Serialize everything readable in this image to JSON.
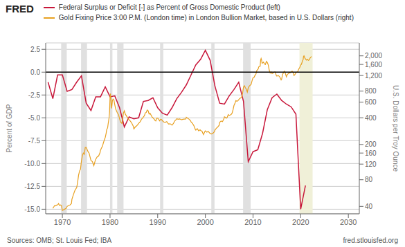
{
  "chart_data": {
    "type": "line",
    "annotations": [
      "FRED",
      "Sources: OMB; St. Louis Fed; IBA",
      "fred.stlouisfed.org"
    ],
    "y_label": "Percent of GDP",
    "y2_label": "U.S. Dollars per Troy Ounce",
    "xlim": [
      1966.5,
      2032.3
    ],
    "xticks": [
      1970,
      1980,
      1990,
      2000,
      2010,
      2020,
      2030
    ],
    "ylim": [
      -15.5,
      3.2
    ],
    "yticks": [
      {
        "value": -15.0,
        "label": "-15.0"
      },
      -12.5,
      {
        "value": -10.0,
        "label": "-10.0"
      },
      -7.5,
      {
        "value": -5.0,
        "label": "-5.0"
      },
      -2.5,
      {
        "value": 0.0,
        "label": "0.0"
      },
      2.5
    ],
    "y2lim": [
      33,
      2800
    ],
    "y2ticks": [
      40,
      80,
      120,
      160,
      200,
      400,
      600,
      800,
      {
        "value": 1200,
        "label": "1,200"
      },
      {
        "value": 1600,
        "label": "1,600"
      },
      {
        "value": 2000,
        "label": "2,000"
      }
    ],
    "log": "y2",
    "grid": "y",
    "zero_line": {
      "value": 0,
      "color": "#000000"
    },
    "recession_bands": {
      "color": "#e0e0e0",
      "ranges": [
        [
          1969.75,
          1970.92
        ],
        [
          1973.92,
          1975.17
        ],
        [
          1980.0,
          1980.5
        ],
        [
          1981.5,
          1982.83
        ],
        [
          1990.5,
          1991.17
        ],
        [
          2001.25,
          2001.92
        ],
        [
          2007.92,
          2009.5
        ],
        [
          2020.0,
          2020.42
        ]
      ]
    },
    "highlight_band": {
      "color": "#f0f0d8",
      "range": [
        2019.75,
        2022.5
      ]
    },
    "series": [
      {
        "name": "Federal Surplus or Deficit [-] as Percent of Gross Domestic Product (left)",
        "color": "#c8173a",
        "x": [
          1967,
          1968,
          1969,
          1970,
          1971,
          1972,
          1973,
          1974,
          1975,
          1976,
          1977,
          1978,
          1979,
          1980,
          1981,
          1982,
          1983,
          1984,
          1985,
          1986,
          1987,
          1988,
          1989,
          1990,
          1991,
          1992,
          1993,
          1994,
          1995,
          1996,
          1997,
          1998,
          1999,
          2000,
          2001,
          2002,
          2003,
          2004,
          2005,
          2006,
          2007,
          2008,
          2009,
          2010,
          2011,
          2012,
          2013,
          2014,
          2015,
          2016,
          2017,
          2018,
          2019,
          2020,
          2021
        ],
        "values": [
          -1.1,
          -2.9,
          -0.3,
          -0.3,
          -2.1,
          -1.9,
          -1.1,
          -0.4,
          -3.4,
          -4.2,
          -2.7,
          -2.7,
          -1.6,
          -2.7,
          -2.6,
          -3.9,
          -6.0,
          -4.9,
          -5.1,
          -5.0,
          -3.2,
          -3.1,
          -2.8,
          -3.9,
          -4.5,
          -4.7,
          -3.9,
          -2.9,
          -2.2,
          -1.4,
          -0.3,
          0.8,
          1.4,
          2.4,
          1.3,
          -1.5,
          -3.4,
          -3.5,
          -2.6,
          -1.9,
          -1.1,
          -3.2,
          -9.8,
          -8.7,
          -8.5,
          -6.7,
          -4.1,
          -2.8,
          -2.4,
          -3.1,
          -3.5,
          -3.8,
          -4.6,
          -15.0,
          -12.4
        ]
      },
      {
        "name": "Gold Fixing Price 3:00 P.M. (London time) in London Bullion Market, based in U.S. Dollars (right)",
        "color": "#e8a020",
        "axis": "y2",
        "x": [
          1968.0,
          1968.2,
          1968.4,
          1968.6,
          1968.8,
          1969.0,
          1969.2,
          1969.4,
          1969.6,
          1969.8,
          1970.0,
          1970.2,
          1970.4,
          1970.6,
          1970.8,
          1971.0,
          1971.3,
          1971.6,
          1971.9,
          1972.0,
          1972.3,
          1972.6,
          1972.9,
          1973.0,
          1973.2,
          1973.4,
          1973.6,
          1973.8,
          1974.0,
          1974.2,
          1974.4,
          1974.6,
          1974.8,
          1975.0,
          1975.2,
          1975.4,
          1975.6,
          1975.8,
          1976.0,
          1976.3,
          1976.6,
          1976.9,
          1977.0,
          1977.3,
          1977.6,
          1977.9,
          1978.0,
          1978.2,
          1978.4,
          1978.6,
          1978.8,
          1979.0,
          1979.1,
          1979.2,
          1979.3,
          1979.4,
          1979.5,
          1979.6,
          1979.7,
          1979.8,
          1979.9,
          1980.0,
          1980.08,
          1980.17,
          1980.25,
          1980.33,
          1980.5,
          1980.67,
          1980.83,
          1981.0,
          1981.2,
          1981.5,
          1981.8,
          1982.0,
          1982.2,
          1982.5,
          1982.8,
          1983.0,
          1983.2,
          1983.5,
          1983.8,
          1984.0,
          1984.3,
          1984.6,
          1984.9,
          1985.0,
          1985.3,
          1985.6,
          1985.9,
          1986.0,
          1986.3,
          1986.6,
          1986.9,
          1987.0,
          1987.2,
          1987.4,
          1987.6,
          1987.8,
          1988.0,
          1988.2,
          1988.4,
          1988.6,
          1988.8,
          1989.0,
          1989.2,
          1989.4,
          1989.6,
          1989.8,
          1990.0,
          1990.2,
          1990.4,
          1990.6,
          1990.8,
          1991.0,
          1991.3,
          1991.6,
          1991.9,
          1992.0,
          1992.3,
          1992.6,
          1992.9,
          1993.0,
          1993.3,
          1993.6,
          1993.9,
          1994.0,
          1994.3,
          1994.6,
          1994.9,
          1995.0,
          1995.3,
          1995.6,
          1995.9,
          1996.0,
          1996.3,
          1996.6,
          1996.9,
          1997.0,
          1997.3,
          1997.6,
          1997.9,
          1998.0,
          1998.3,
          1998.6,
          1998.9,
          1999.0,
          1999.3,
          1999.6,
          1999.9,
          2000.0,
          2000.3,
          2000.6,
          2000.9,
          2001.0,
          2001.3,
          2001.6,
          2001.9,
          2002.0,
          2002.3,
          2002.6,
          2002.9,
          2003.0,
          2003.3,
          2003.6,
          2003.9,
          2004.0,
          2004.2,
          2004.4,
          2004.6,
          2004.8,
          2005.0,
          2005.2,
          2005.4,
          2005.6,
          2005.8,
          2006.0,
          2006.2,
          2006.4,
          2006.6,
          2006.8,
          2007.0,
          2007.2,
          2007.4,
          2007.6,
          2007.8,
          2008.0,
          2008.2,
          2008.4,
          2008.6,
          2008.8,
          2009.0,
          2009.2,
          2009.4,
          2009.6,
          2009.8,
          2010.0,
          2010.2,
          2010.4,
          2010.6,
          2010.8,
          2011.0,
          2011.1,
          2011.2,
          2011.3,
          2011.4,
          2011.5,
          2011.6,
          2011.7,
          2011.8,
          2011.9,
          2012.0,
          2012.2,
          2012.4,
          2012.6,
          2012.8,
          2013.0,
          2013.2,
          2013.4,
          2013.6,
          2013.8,
          2014.0,
          2014.3,
          2014.6,
          2014.9,
          2015.0,
          2015.3,
          2015.6,
          2015.9,
          2016.0,
          2016.2,
          2016.4,
          2016.6,
          2016.8,
          2017.0,
          2017.2,
          2017.4,
          2017.6,
          2017.8,
          2018.0,
          2018.2,
          2018.4,
          2018.6,
          2018.8,
          2019.0,
          2019.2,
          2019.4,
          2019.6,
          2019.8,
          2020.0,
          2020.1,
          2020.2,
          2020.3,
          2020.4,
          2020.5,
          2020.6,
          2020.7,
          2020.8,
          2020.9,
          2021.0,
          2021.2,
          2021.4,
          2021.6,
          2021.8,
          2022.0,
          2022.2,
          2022.25
        ],
        "values": [
          38.0,
          39.5,
          41.0,
          40.5,
          41.5,
          41.5,
          43.0,
          41.0,
          41.5,
          40.8,
          36.0,
          36.5,
          37.0,
          37.5,
          38.0,
          40.0,
          41.0,
          41.5,
          43.0,
          48.0,
          54.0,
          60.0,
          64.0,
          65.0,
          75.0,
          90.0,
          100.0,
          105.0,
          130.0,
          150.0,
          160.0,
          155.0,
          185.0,
          185.0,
          175.0,
          165.0,
          160.0,
          145.0,
          132.0,
          128.0,
          115.0,
          132.0,
          136.0,
          145.0,
          148.0,
          162.0,
          172.0,
          182.0,
          190.0,
          208.0,
          225.0,
          240.0,
          255.0,
          270.0,
          295.0,
          300.0,
          310.0,
          340.0,
          370.0,
          400.0,
          460.0,
          680.0,
          750.0,
          680.0,
          560.0,
          510.0,
          630.0,
          650.0,
          630.0,
          560.0,
          500.0,
          460.0,
          430.0,
          390.0,
          360.0,
          345.0,
          450.0,
          480.0,
          440.0,
          415.0,
          390.0,
          380.0,
          365.0,
          345.0,
          320.0,
          300.0,
          315.0,
          325.0,
          340.0,
          345.0,
          360.0,
          385.0,
          400.0,
          410.0,
          420.0,
          455.0,
          460.0,
          490.0,
          480.0,
          440.0,
          450.0,
          430.0,
          410.0,
          400.0,
          390.0,
          375.0,
          368.0,
          395.0,
          395.0,
          385.0,
          370.0,
          385.0,
          382.0,
          370.0,
          358.0,
          355.0,
          362.0,
          355.0,
          340.0,
          342.0,
          335.0,
          330.0,
          345.0,
          370.0,
          383.0,
          390.0,
          385.0,
          388.0,
          382.0,
          380.0,
          385.0,
          387.0,
          388.0,
          405.0,
          395.0,
          385.0,
          370.0,
          360.0,
          345.0,
          325.0,
          295.0,
          290.0,
          302.0,
          285.0,
          293.0,
          288.0,
          282.0,
          258.0,
          280.0,
          285.0,
          275.0,
          280.0,
          270.0,
          265.0,
          263.0,
          268.0,
          278.0,
          290.0,
          305.0,
          315.0,
          330.0,
          355.0,
          368.0,
          362.0,
          390.0,
          410.0,
          405.0,
          395.0,
          405.0,
          435.0,
          425.0,
          430.0,
          435.0,
          450.0,
          490.0,
          550.0,
          580.0,
          625.0,
          615.0,
          620.0,
          640.0,
          660.0,
          670.0,
          680.0,
          750.0,
          890.0,
          920.0,
          870.0,
          840.0,
          780.0,
          870.0,
          910.0,
          930.0,
          955.0,
          1050.0,
          1130.0,
          1140.0,
          1200.0,
          1240.0,
          1370.0,
          1400.0,
          1430.0,
          1500.0,
          1510.0,
          1530.0,
          1530.0,
          1800.0,
          1870.0,
          1790.0,
          1650.0,
          1660.0,
          1700.0,
          1620.0,
          1600.0,
          1730.0,
          1680.0,
          1580.0,
          1380.0,
          1280.0,
          1320.0,
          1260.0,
          1290.0,
          1320.0,
          1200.0,
          1180.0,
          1200.0,
          1160.0,
          1070.0,
          1090.0,
          1230.0,
          1300.0,
          1340.0,
          1260.0,
          1160.0,
          1230.0,
          1260.0,
          1280.0,
          1290.0,
          1310.0,
          1340.0,
          1295.0,
          1200.0,
          1230.0,
          1290.0,
          1310.0,
          1330.0,
          1420.0,
          1480.0,
          1580.0,
          1590.0,
          1630.0,
          1700.0,
          1770.0,
          1800.0,
          1970.0,
          2000.0,
          1940.0,
          1880.0,
          1850.0,
          1790.0,
          1830.0,
          1780.0,
          1800.0,
          1900.0,
          1950.0,
          1970.0
        ]
      }
    ]
  }
}
